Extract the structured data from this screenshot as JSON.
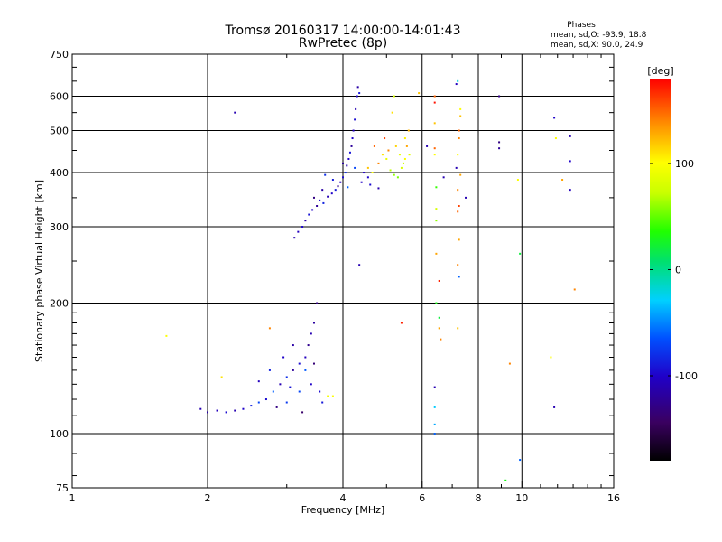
{
  "header": {
    "title": "Tromsø 20160317 14:00:00-14:01:43",
    "subtitle": "RwPretec (8p)"
  },
  "phases_box": {
    "heading": "Phases",
    "line_o": "mean, sd,O: -93.9, 18.8",
    "line_x": "mean, sd,X:  90.0, 24.9"
  },
  "chart_data": {
    "type": "scatter",
    "title": "Tromsø 20160317 14:00:00-14:01:43",
    "subtitle": "RwPretec (8p)",
    "xlabel": "Frequency [MHz]",
    "ylabel": "Stationary phase Virtual Height [km]",
    "x_scale": "log",
    "y_scale": "log",
    "xlim": [
      1,
      16
    ],
    "ylim": [
      75,
      750
    ],
    "x_ticks": [
      "1",
      "2",
      "4",
      "6",
      "8",
      "10",
      "16"
    ],
    "x_tick_values": [
      1,
      2,
      4,
      6,
      8,
      10,
      16
    ],
    "y_ticks": [
      "75",
      "100",
      "200",
      "300",
      "400",
      "500",
      "600",
      "750"
    ],
    "y_tick_values": [
      75,
      100,
      200,
      300,
      400,
      500,
      600,
      750
    ],
    "grid": true,
    "colorbar": {
      "label": "[deg]",
      "range": [
        -180,
        180
      ],
      "ticks": [
        "100",
        "0",
        "-100"
      ],
      "tick_values": [
        100,
        0,
        -100
      ],
      "colormap": "black-purple-blue-cyan-green-yellow-orange-red"
    },
    "series": [
      {
        "points": [
          {
            "f": 3.12,
            "h": 283,
            "p": -110
          },
          {
            "f": 3.18,
            "h": 292,
            "p": -105
          },
          {
            "f": 3.25,
            "h": 300,
            "p": -98
          },
          {
            "f": 3.3,
            "h": 310,
            "p": -115
          },
          {
            "f": 3.36,
            "h": 320,
            "p": -92
          },
          {
            "f": 3.42,
            "h": 328,
            "p": -100
          },
          {
            "f": 3.5,
            "h": 335,
            "p": -120
          },
          {
            "f": 3.55,
            "h": 345,
            "p": -95
          },
          {
            "f": 3.62,
            "h": 340,
            "p": -85
          },
          {
            "f": 3.7,
            "h": 352,
            "p": -110
          },
          {
            "f": 3.78,
            "h": 358,
            "p": -100
          },
          {
            "f": 3.85,
            "h": 365,
            "p": -90
          },
          {
            "f": 3.9,
            "h": 372,
            "p": -125
          },
          {
            "f": 3.95,
            "h": 380,
            "p": -105
          },
          {
            "f": 4.0,
            "h": 390,
            "p": -95
          },
          {
            "f": 4.05,
            "h": 400,
            "p": -80
          },
          {
            "f": 4.08,
            "h": 415,
            "p": -110
          },
          {
            "f": 4.12,
            "h": 430,
            "p": -100
          },
          {
            "f": 4.15,
            "h": 445,
            "p": -92
          },
          {
            "f": 4.18,
            "h": 460,
            "p": -120
          },
          {
            "f": 4.2,
            "h": 480,
            "p": -100
          },
          {
            "f": 4.22,
            "h": 500,
            "p": -105
          },
          {
            "f": 4.25,
            "h": 530,
            "p": -95
          },
          {
            "f": 4.27,
            "h": 560,
            "p": -110
          },
          {
            "f": 4.3,
            "h": 600,
            "p": -100
          },
          {
            "f": 4.32,
            "h": 630,
            "p": -115
          },
          {
            "f": 4.35,
            "h": 610,
            "p": -90
          },
          {
            "f": 3.45,
            "h": 350,
            "p": -130
          },
          {
            "f": 3.6,
            "h": 365,
            "p": -115
          },
          {
            "f": 3.8,
            "h": 385,
            "p": -88
          },
          {
            "f": 4.1,
            "h": 370,
            "p": -60
          },
          {
            "f": 4.4,
            "h": 380,
            "p": -102
          },
          {
            "f": 4.6,
            "h": 375,
            "p": -96
          },
          {
            "f": 4.8,
            "h": 368,
            "p": -112
          },
          {
            "f": 3.65,
            "h": 395,
            "p": -80
          },
          {
            "f": 4.0,
            "h": 420,
            "p": -118
          },
          {
            "f": 4.25,
            "h": 410,
            "p": -70
          },
          {
            "f": 4.45,
            "h": 400,
            "p": -104
          },
          {
            "f": 4.55,
            "h": 390,
            "p": -98
          },
          {
            "f": 2.3,
            "h": 550,
            "p": -110
          },
          {
            "f": 4.35,
            "h": 245,
            "p": -110
          },
          {
            "f": 1.93,
            "h": 114,
            "p": -110
          },
          {
            "f": 2.0,
            "h": 112,
            "p": -115
          },
          {
            "f": 2.1,
            "h": 113,
            "p": -105
          },
          {
            "f": 2.2,
            "h": 112,
            "p": -95
          },
          {
            "f": 2.3,
            "h": 113,
            "p": -110
          },
          {
            "f": 2.4,
            "h": 114,
            "p": -100
          },
          {
            "f": 2.5,
            "h": 116,
            "p": -85
          },
          {
            "f": 2.6,
            "h": 118,
            "p": -70
          },
          {
            "f": 2.7,
            "h": 120,
            "p": -95
          },
          {
            "f": 2.8,
            "h": 125,
            "p": -60
          },
          {
            "f": 2.9,
            "h": 130,
            "p": -110
          },
          {
            "f": 3.0,
            "h": 135,
            "p": -80
          },
          {
            "f": 3.1,
            "h": 140,
            "p": -120
          },
          {
            "f": 3.2,
            "h": 145,
            "p": -95
          },
          {
            "f": 3.3,
            "h": 150,
            "p": -105
          },
          {
            "f": 3.35,
            "h": 160,
            "p": -125
          },
          {
            "f": 3.4,
            "h": 170,
            "p": -110
          },
          {
            "f": 3.45,
            "h": 180,
            "p": -118
          },
          {
            "f": 3.5,
            "h": 200,
            "p": -130
          },
          {
            "f": 3.4,
            "h": 130,
            "p": -100
          },
          {
            "f": 3.2,
            "h": 125,
            "p": -70
          },
          {
            "f": 3.0,
            "h": 118,
            "p": -75
          },
          {
            "f": 2.85,
            "h": 115,
            "p": -130
          },
          {
            "f": 3.55,
            "h": 125,
            "p": -96
          },
          {
            "f": 3.6,
            "h": 118,
            "p": -90
          },
          {
            "f": 3.25,
            "h": 112,
            "p": -140
          },
          {
            "f": 3.1,
            "h": 160,
            "p": -115
          },
          {
            "f": 2.95,
            "h": 150,
            "p": -100
          },
          {
            "f": 2.75,
            "h": 140,
            "p": -85
          },
          {
            "f": 2.6,
            "h": 132,
            "p": -105
          },
          {
            "f": 3.3,
            "h": 140,
            "p": -62
          },
          {
            "f": 3.45,
            "h": 145,
            "p": -135
          },
          {
            "f": 3.05,
            "h": 128,
            "p": -92
          },
          {
            "f": 1.62,
            "h": 168,
            "p": 100
          },
          {
            "f": 2.15,
            "h": 135,
            "p": 110
          },
          {
            "f": 2.75,
            "h": 175,
            "p": 140
          },
          {
            "f": 3.7,
            "h": 122,
            "p": 95
          },
          {
            "f": 3.8,
            "h": 122,
            "p": 100
          },
          {
            "f": 4.55,
            "h": 410,
            "p": 120
          },
          {
            "f": 4.65,
            "h": 400,
            "p": 100
          },
          {
            "f": 4.8,
            "h": 420,
            "p": 140
          },
          {
            "f": 4.9,
            "h": 440,
            "p": 110
          },
          {
            "f": 5.0,
            "h": 430,
            "p": 90
          },
          {
            "f": 5.1,
            "h": 405,
            "p": 70
          },
          {
            "f": 5.2,
            "h": 395,
            "p": 60
          },
          {
            "f": 5.3,
            "h": 390,
            "p": 55
          },
          {
            "f": 5.4,
            "h": 410,
            "p": 80
          },
          {
            "f": 5.5,
            "h": 430,
            "p": 100
          },
          {
            "f": 5.55,
            "h": 460,
            "p": 130
          },
          {
            "f": 5.6,
            "h": 500,
            "p": 125
          },
          {
            "f": 5.45,
            "h": 420,
            "p": 75
          },
          {
            "f": 5.35,
            "h": 440,
            "p": 90
          },
          {
            "f": 5.25,
            "h": 460,
            "p": 115
          },
          {
            "f": 5.05,
            "h": 450,
            "p": 140
          },
          {
            "f": 5.62,
            "h": 440,
            "p": 85
          },
          {
            "f": 5.5,
            "h": 480,
            "p": 105
          },
          {
            "f": 4.95,
            "h": 480,
            "p": 160
          },
          {
            "f": 4.7,
            "h": 460,
            "p": 150
          },
          {
            "f": 5.2,
            "h": 600,
            "p": 80
          },
          {
            "f": 5.15,
            "h": 550,
            "p": 110
          },
          {
            "f": 5.4,
            "h": 180,
            "p": 170
          },
          {
            "f": 5.9,
            "h": 610,
            "p": 120
          },
          {
            "f": 6.15,
            "h": 460,
            "p": -110
          },
          {
            "f": 6.4,
            "h": 600,
            "p": 150
          },
          {
            "f": 6.4,
            "h": 580,
            "p": 175
          },
          {
            "f": 6.4,
            "h": 520,
            "p": 120
          },
          {
            "f": 6.4,
            "h": 455,
            "p": 150
          },
          {
            "f": 6.4,
            "h": 440,
            "p": 100
          },
          {
            "f": 6.45,
            "h": 370,
            "p": 40
          },
          {
            "f": 6.45,
            "h": 330,
            "p": 80
          },
          {
            "f": 6.45,
            "h": 310,
            "p": 60
          },
          {
            "f": 6.45,
            "h": 260,
            "p": 130
          },
          {
            "f": 6.55,
            "h": 225,
            "p": 170
          },
          {
            "f": 6.45,
            "h": 200,
            "p": 30
          },
          {
            "f": 6.55,
            "h": 185,
            "p": 20
          },
          {
            "f": 6.55,
            "h": 175,
            "p": 130
          },
          {
            "f": 6.6,
            "h": 165,
            "p": 140
          },
          {
            "f": 6.4,
            "h": 128,
            "p": -110
          },
          {
            "f": 6.4,
            "h": 115,
            "p": -30
          },
          {
            "f": 6.4,
            "h": 105,
            "p": -40
          },
          {
            "f": 6.4,
            "h": 100,
            "p": -60
          },
          {
            "f": 6.7,
            "h": 390,
            "p": -110
          },
          {
            "f": 7.2,
            "h": 650,
            "p": -20
          },
          {
            "f": 7.15,
            "h": 640,
            "p": -105
          },
          {
            "f": 7.3,
            "h": 560,
            "p": 100
          },
          {
            "f": 7.3,
            "h": 540,
            "p": 120
          },
          {
            "f": 7.25,
            "h": 500,
            "p": 150
          },
          {
            "f": 7.25,
            "h": 480,
            "p": 140
          },
          {
            "f": 7.2,
            "h": 440,
            "p": 100
          },
          {
            "f": 7.15,
            "h": 410,
            "p": -110
          },
          {
            "f": 7.3,
            "h": 395,
            "p": 130
          },
          {
            "f": 7.2,
            "h": 365,
            "p": 140
          },
          {
            "f": 7.25,
            "h": 335,
            "p": 160
          },
          {
            "f": 7.2,
            "h": 325,
            "p": 150
          },
          {
            "f": 7.25,
            "h": 280,
            "p": 130
          },
          {
            "f": 7.2,
            "h": 245,
            "p": 140
          },
          {
            "f": 7.25,
            "h": 230,
            "p": -60
          },
          {
            "f": 7.2,
            "h": 175,
            "p": 120
          },
          {
            "f": 7.5,
            "h": 350,
            "p": -110
          },
          {
            "f": 8.9,
            "h": 600,
            "p": -130
          },
          {
            "f": 8.9,
            "h": 470,
            "p": -130
          },
          {
            "f": 8.9,
            "h": 455,
            "p": -120
          },
          {
            "f": 9.4,
            "h": 145,
            "p": 140
          },
          {
            "f": 9.8,
            "h": 385,
            "p": 100
          },
          {
            "f": 9.9,
            "h": 260,
            "p": 20
          },
          {
            "f": 9.2,
            "h": 78,
            "p": 30
          },
          {
            "f": 9.9,
            "h": 87,
            "p": -60
          },
          {
            "f": 11.8,
            "h": 535,
            "p": -100
          },
          {
            "f": 11.9,
            "h": 480,
            "p": 100
          },
          {
            "f": 12.3,
            "h": 385,
            "p": 130
          },
          {
            "f": 11.6,
            "h": 150,
            "p": 100
          },
          {
            "f": 11.8,
            "h": 115,
            "p": -110
          },
          {
            "f": 12.8,
            "h": 485,
            "p": -110
          },
          {
            "f": 12.8,
            "h": 425,
            "p": -100
          },
          {
            "f": 12.8,
            "h": 365,
            "p": -105
          },
          {
            "f": 13.1,
            "h": 215,
            "p": 140
          }
        ]
      }
    ]
  }
}
